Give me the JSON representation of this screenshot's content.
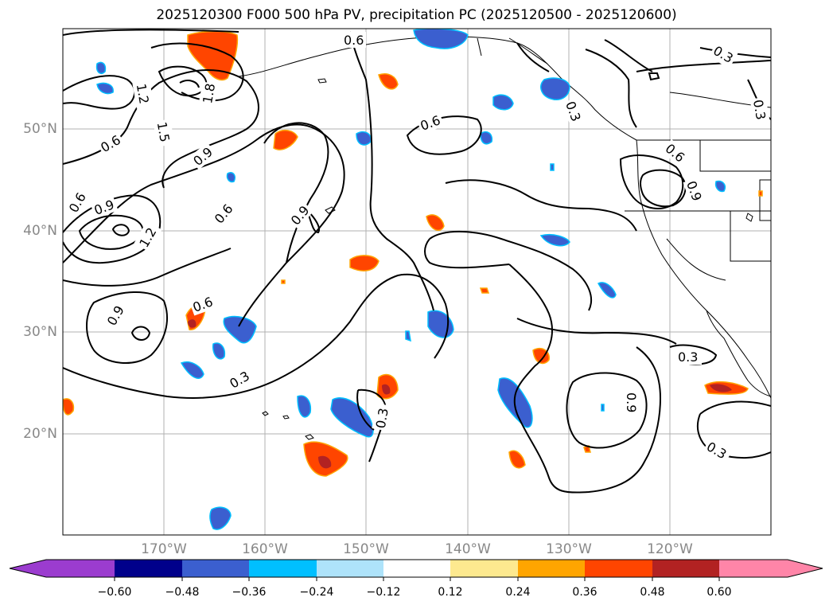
{
  "title": "2025120300 F000 500 hPa PV, precipitation PC (2025120500 - 2025120600)",
  "lat_labels": [
    "50°N",
    "40°N",
    "30°N",
    "20°N"
  ],
  "lon_labels": [
    "170°W",
    "160°W",
    "150°W",
    "140°W",
    "130°W",
    "120°W"
  ],
  "contour_labels": [
    "0.6",
    "0.3",
    "0.9",
    "1.2",
    "1.5",
    "1.8",
    "0.6",
    "0.9",
    "1.2",
    "0.6",
    "0.9",
    "0.3",
    "0.6",
    "0.9",
    "0.6",
    "0.3",
    "0.3",
    "0.9",
    "0.3",
    "0.3",
    "0.6",
    "0.9",
    "0.3",
    "0.6"
  ],
  "colorbar": {
    "ticks": [
      "−0.60",
      "−0.48",
      "−0.36",
      "−0.24",
      "−0.12",
      "0.12",
      "0.24",
      "0.36",
      "0.48",
      "0.60"
    ],
    "colors": [
      "#9b3ccf",
      "#00008b",
      "#3b5fcf",
      "#00bfff",
      "#aee3fa",
      "#ffffff",
      "#fde98f",
      "#ffa500",
      "#ff4500",
      "#b22222",
      "#ff85a8"
    ]
  }
}
